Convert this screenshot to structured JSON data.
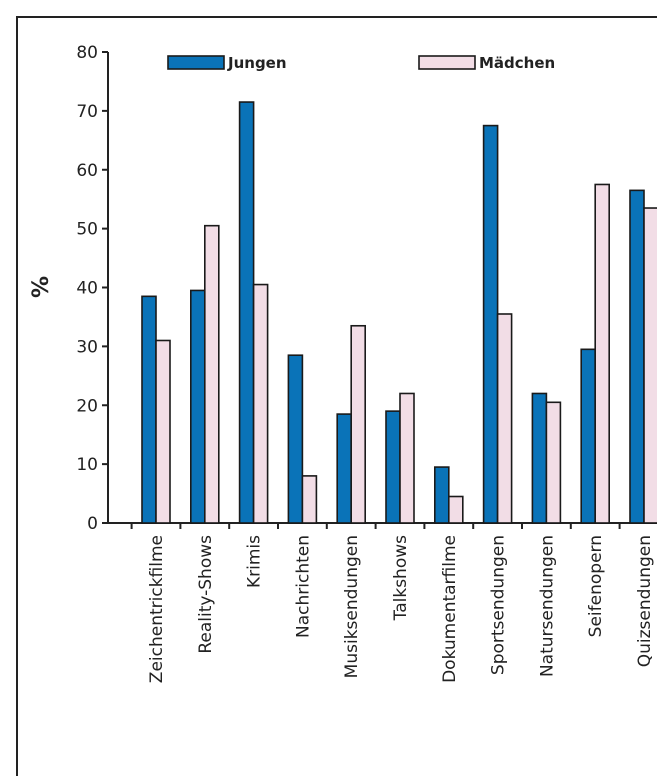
{
  "chart_data": {
    "type": "bar",
    "title": "",
    "xlabel": "",
    "ylabel": "%",
    "ylim": [
      0,
      80
    ],
    "yticks": [
      0,
      10,
      20,
      30,
      40,
      50,
      60,
      70,
      80
    ],
    "grid": false,
    "legend_position": "top",
    "categories": [
      "Zeichentrickfilme",
      "Reality-Shows",
      "Krimis",
      "Nachrichten",
      "Musiksendungen",
      "Talkshows",
      "Dokumentarfilme",
      "Sportsendungen",
      "Natursendungen",
      "Seifenopern",
      "Quizsendungen"
    ],
    "series": [
      {
        "name": "Jungen",
        "color": "#0a73b8",
        "values": [
          38.5,
          39.5,
          71.5,
          28.5,
          18.5,
          19,
          9.5,
          67.5,
          22,
          29.5,
          56.5
        ]
      },
      {
        "name": "Mädchen",
        "color": "#f2dde6",
        "values": [
          31,
          50.5,
          40.5,
          8,
          33.5,
          22,
          4.5,
          35.5,
          20.5,
          57.5,
          53.5
        ]
      }
    ]
  }
}
